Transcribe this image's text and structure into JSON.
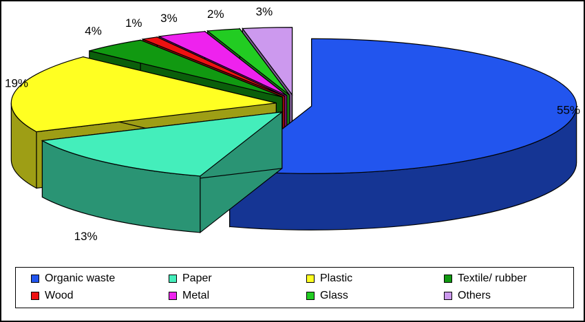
{
  "chart_data": {
    "type": "pie",
    "title": "",
    "categories": [
      "Organic waste",
      "Paper",
      "Plastic",
      "Textile/ rubber",
      "Wood",
      "Metal",
      "Glass",
      "Others"
    ],
    "values": [
      55,
      13,
      19,
      4,
      1,
      3,
      2,
      3
    ],
    "labels": [
      "55%",
      "13%",
      "19%",
      "4%",
      "1%",
      "3%",
      "2%",
      "3%"
    ],
    "colors": [
      "#2255EE",
      "#44EEBB",
      "#FFFF22",
      "#119911",
      "#EE1111",
      "#EE22EE",
      "#22CC22",
      "#CC99EE"
    ],
    "exploded": true,
    "legend_position": "bottom"
  }
}
